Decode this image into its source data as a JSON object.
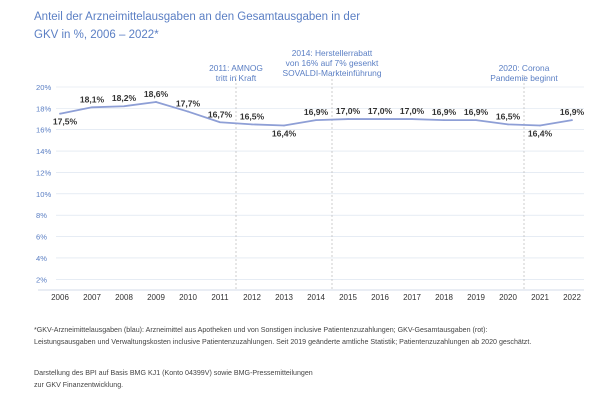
{
  "chart_data": {
    "type": "line",
    "title_lines": [
      "Anteil der Arzneimittelausgaben an den Gesamtausgaben in der",
      "GKV in %, 2006 – 2022*"
    ],
    "categories": [
      "2006",
      "2007",
      "2008",
      "2009",
      "2010",
      "2011",
      "2012",
      "2013",
      "2014",
      "2015",
      "2016",
      "2017",
      "2018",
      "2019",
      "2020",
      "2021",
      "2022"
    ],
    "series": [
      {
        "values": [
          17.5,
          18.1,
          18.2,
          18.6,
          17.7,
          16.7,
          16.5,
          16.4,
          16.9,
          17.0,
          17.0,
          17.0,
          16.9,
          16.9,
          16.5,
          16.4,
          16.9
        ]
      }
    ],
    "data_labels": [
      "17,5%",
      "18,1%",
      "18,2%",
      "18,6%",
      "17,7%",
      "16,7%",
      "16,5%",
      "16,4%",
      "16,9%",
      "17,0%",
      "17,0%",
      "17,0%",
      "16,9%",
      "16,9%",
      "16,5%",
      "16,4%",
      "16,9%"
    ],
    "y_ticks": [
      "2%",
      "4%",
      "6%",
      "8%",
      "10%",
      "12%",
      "14%",
      "16%",
      "18%",
      "20%"
    ],
    "ylim": [
      1,
      20
    ],
    "grid": "horizontal",
    "line_color": "#8e9fd6",
    "marker_lines": [
      {
        "year": "2011",
        "lines": [
          "2011: AMNOG",
          "tritt in Kraft"
        ]
      },
      {
        "year": "2014",
        "lines": [
          "2014: Herstellerrabatt",
          "von 16% auf 7% gesenkt",
          "SOVALDI-Markteinführung"
        ]
      },
      {
        "year": "2020",
        "lines": [
          "2020: Corona",
          "Pandemie beginnt"
        ]
      }
    ]
  },
  "footnote": {
    "line1": "*GKV-Arzneimittelausgaben (blau): Arzneimittel aus Apotheken und von Sonstigen inclusive Patientenzuzahlungen; GKV-Gesamtausgaben (rot):",
    "line2": "Leistungsausgaben und Verwaltungskosten inclusive Patientenzuzahlungen. Seit 2019 geänderte amtliche Statistik; Patientenzuzahlungen ab 2020 geschätzt."
  },
  "source": {
    "line1": "Darstellung des BPI auf Basis BMG KJ1 (Konto 04399V) sowie BMG-Pressemitteilungen",
    "line2": "zur GKV Finanzentwicklung."
  },
  "colors": {
    "accent": "#5b7fc4",
    "line": "#8e9fd6",
    "grid": "#d7e0ee"
  }
}
